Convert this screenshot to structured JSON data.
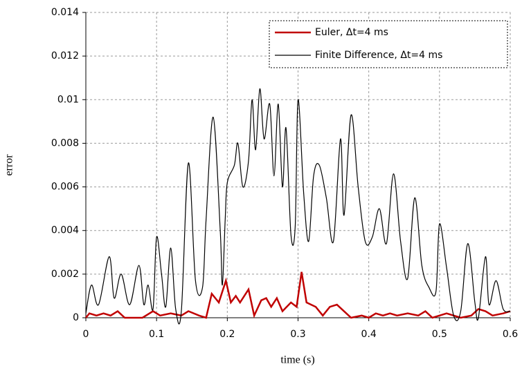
{
  "chart_data": {
    "type": "line",
    "xlabel": "time (s)",
    "ylabel": "error",
    "xlim": [
      0,
      0.6
    ],
    "xticks": [
      0,
      0.1,
      0.2,
      0.3,
      0.4,
      0.5,
      0.6
    ],
    "ylim": [
      0,
      0.014
    ],
    "yticks": [
      0,
      0.002,
      0.004,
      0.006,
      0.008,
      0.01,
      0.012,
      0.014
    ],
    "grid": true,
    "legend": "upper right",
    "series": [
      {
        "name": "Euler, Δt=4 ms",
        "color": "#c00000",
        "smooth": false,
        "x": [
          0,
          0.005,
          0.015,
          0.025,
          0.035,
          0.045,
          0.055,
          0.07,
          0.08,
          0.095,
          0.105,
          0.12,
          0.135,
          0.145,
          0.16,
          0.17,
          0.178,
          0.188,
          0.198,
          0.205,
          0.212,
          0.218,
          0.23,
          0.238,
          0.248,
          0.255,
          0.262,
          0.27,
          0.278,
          0.29,
          0.298,
          0.305,
          0.312,
          0.325,
          0.335,
          0.345,
          0.355,
          0.365,
          0.375,
          0.39,
          0.4,
          0.41,
          0.42,
          0.43,
          0.44,
          0.455,
          0.47,
          0.48,
          0.49,
          0.5,
          0.51,
          0.52,
          0.53,
          0.545,
          0.555,
          0.565,
          0.575,
          0.59,
          0.6
        ],
        "values": [
          0,
          0.0002,
          0.0001,
          0.0002,
          0.0001,
          0.0003,
          0,
          0,
          0,
          0.0003,
          0.0001,
          0.0002,
          0.0001,
          0.0003,
          0.0001,
          0,
          0.0011,
          0.0007,
          0.0017,
          0.0007,
          0.001,
          0.0007,
          0.0013,
          0.0001,
          0.0008,
          0.0009,
          0.0005,
          0.0009,
          0.0003,
          0.0007,
          0.0005,
          0.0021,
          0.0007,
          0.0005,
          0.0001,
          0.0005,
          0.0006,
          0.0003,
          0,
          0.0001,
          0,
          0.0002,
          0.0001,
          0.0002,
          0.0001,
          0.0002,
          0.0001,
          0.0003,
          0,
          0.0001,
          0.0002,
          0.0001,
          0,
          0.0001,
          0.0004,
          0.0003,
          0.0001,
          0.0002,
          0.0003
        ]
      },
      {
        "name": "Finite Difference, Δt=4 ms",
        "color": "#000000",
        "smooth": true,
        "x": [
          0,
          0.008,
          0.018,
          0.033,
          0.04,
          0.05,
          0.062,
          0.075,
          0.082,
          0.088,
          0.095,
          0.1,
          0.107,
          0.113,
          0.12,
          0.127,
          0.135,
          0.145,
          0.155,
          0.165,
          0.17,
          0.18,
          0.19,
          0.193,
          0.197,
          0.2,
          0.21,
          0.215,
          0.222,
          0.23,
          0.235,
          0.24,
          0.246,
          0.252,
          0.26,
          0.266,
          0.272,
          0.278,
          0.283,
          0.29,
          0.296,
          0.3,
          0.308,
          0.315,
          0.322,
          0.33,
          0.34,
          0.35,
          0.36,
          0.365,
          0.375,
          0.385,
          0.395,
          0.405,
          0.415,
          0.425,
          0.435,
          0.445,
          0.455,
          0.465,
          0.475,
          0.485,
          0.495,
          0.5,
          0.51,
          0.52,
          0.53,
          0.54,
          0.55,
          0.555,
          0.565,
          0.57,
          0.58,
          0.59,
          0.6
        ],
        "values": [
          0.0002,
          0.0015,
          0.0006,
          0.0028,
          0.0009,
          0.002,
          0.0006,
          0.0024,
          0.0006,
          0.0015,
          0.0004,
          0.0037,
          0.002,
          0.0005,
          0.0032,
          0.0004,
          0.0003,
          0.0071,
          0.0017,
          0.0014,
          0.0045,
          0.0092,
          0.004,
          0.0015,
          0.0045,
          0.0062,
          0.007,
          0.008,
          0.006,
          0.0072,
          0.01,
          0.0077,
          0.0105,
          0.0082,
          0.0098,
          0.0065,
          0.0098,
          0.006,
          0.0087,
          0.0038,
          0.0042,
          0.01,
          0.0057,
          0.0035,
          0.0065,
          0.007,
          0.0055,
          0.0035,
          0.0082,
          0.0047,
          0.0093,
          0.006,
          0.0035,
          0.0037,
          0.005,
          0.0034,
          0.0066,
          0.0035,
          0.0018,
          0.0055,
          0.0024,
          0.0014,
          0.0012,
          0.0043,
          0.0023,
          0.0001,
          0.0003,
          0.0034,
          0.0007,
          0,
          0.0028,
          0.0006,
          0.0017,
          0.0004,
          0.0003
        ]
      }
    ]
  }
}
